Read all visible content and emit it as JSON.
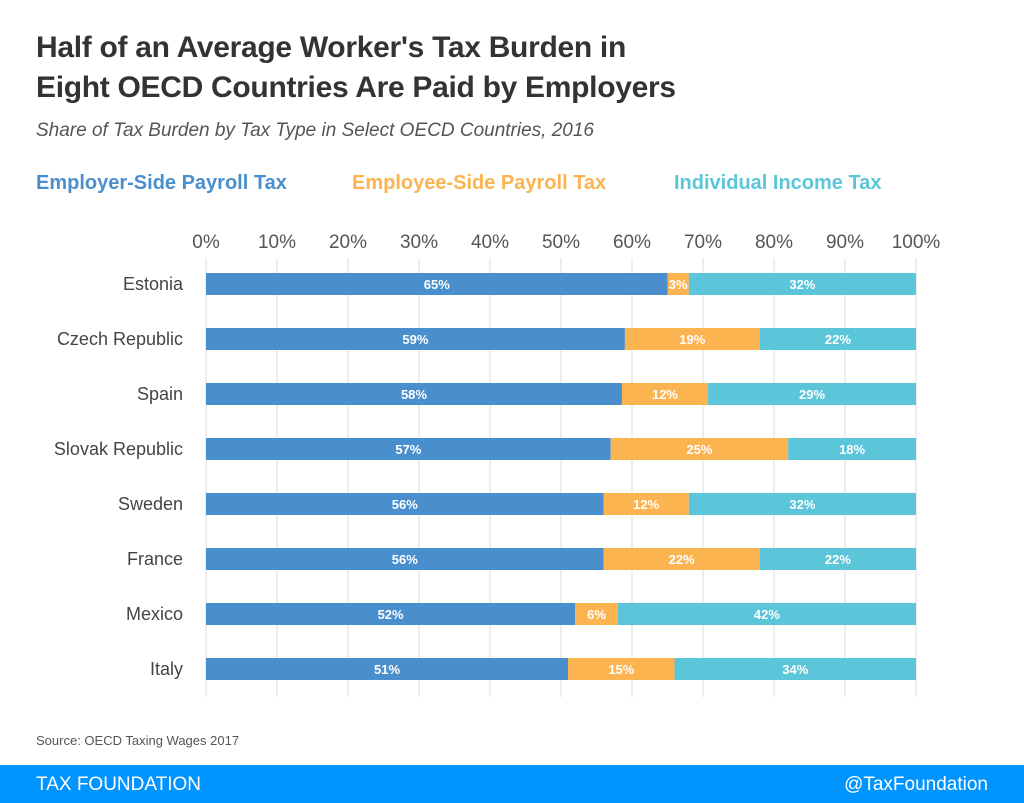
{
  "title_line1": "Half of an Average Worker's Tax Burden in",
  "title_line2": "Eight OECD Countries Are Paid by Employers",
  "subtitle": "Share of Tax Burden by Tax Type in Select OECD Countries, 2016",
  "source": "Source: OECD Taxing Wages 2017",
  "footer": {
    "left": "TAX FOUNDATION",
    "right": "@TaxFoundation",
    "color": "#0094ff"
  },
  "chart_data": {
    "type": "bar",
    "orientation": "horizontal",
    "stacked": true,
    "title": "Half of an Average Worker's Tax Burden in Eight OECD Countries Are Paid by Employers",
    "subtitle": "Share of Tax Burden by Tax Type in Select OECD Countries, 2016",
    "xlim": [
      0,
      100
    ],
    "grid": true,
    "legend": "top",
    "xticks": [
      "0%",
      "10%",
      "20%",
      "30%",
      "40%",
      "50%",
      "60%",
      "70%",
      "80%",
      "90%",
      "100%"
    ],
    "categories": [
      "Estonia",
      "Czech Republic",
      "Spain",
      "Slovak Republic",
      "Sweden",
      "France",
      "Mexico",
      "Italy"
    ],
    "series": [
      {
        "name": "Employer-Side Payroll Tax",
        "color": "#4a8fcd",
        "values": [
          65,
          59,
          58,
          57,
          56,
          56,
          52,
          51
        ]
      },
      {
        "name": "Employee-Side Payroll Tax",
        "color": "#fbb44f",
        "values": [
          3,
          19,
          12,
          25,
          12,
          22,
          6,
          15
        ]
      },
      {
        "name": "Individual Income Tax",
        "color": "#5bc5d9",
        "values": [
          32,
          22,
          29,
          18,
          32,
          22,
          42,
          34
        ]
      }
    ]
  }
}
